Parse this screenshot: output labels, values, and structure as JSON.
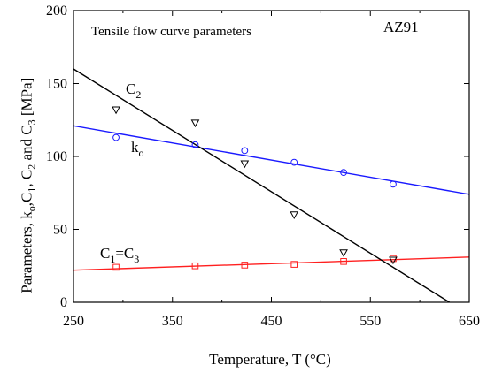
{
  "chart_data": {
    "type": "scatter",
    "title": "Tensile flow curve parameters",
    "material": "AZ91",
    "xlabel": "Temperature, T (°C)",
    "ylabel": "Parameters, k",
    "ylabel_parts": [
      "Parameters, k",
      "o",
      ",C",
      "1",
      ", C",
      "2",
      " and C",
      "3",
      " [MPa]"
    ],
    "xlim": [
      250,
      650
    ],
    "ylim": [
      0,
      200
    ],
    "xticks": [
      "250",
      "350",
      "450",
      "550",
      "650"
    ],
    "yticks": [
      "0",
      "50",
      "100",
      "150",
      "200"
    ],
    "colors": {
      "ko": "#1a1aff",
      "c13": "#ff2020",
      "c2": "#000000"
    },
    "series": [
      {
        "name": "k",
        "label_main": "k",
        "label_sub": "o",
        "marker": "circle",
        "color": "#1a1aff",
        "x": [
          293,
          373,
          423,
          473,
          523,
          573
        ],
        "y": [
          113,
          108,
          104,
          96,
          89,
          81
        ],
        "fit": {
          "x": [
            250,
            650
          ],
          "y": [
            121,
            74
          ]
        }
      },
      {
        "name": "C",
        "label_parts": [
          "C",
          "1",
          "=C",
          "3"
        ],
        "marker": "square",
        "color": "#ff2020",
        "x": [
          293,
          373,
          423,
          473,
          523,
          573
        ],
        "y": [
          24,
          25,
          25.5,
          26,
          28,
          30
        ],
        "fit": {
          "x": [
            250,
            650
          ],
          "y": [
            22,
            31
          ]
        }
      },
      {
        "name": "C",
        "label_main": "C",
        "label_sub": "2",
        "marker": "triangle-down",
        "color": "#000000",
        "x": [
          293,
          373,
          423,
          473,
          523,
          573
        ],
        "y": [
          132,
          123,
          95,
          60,
          34,
          29
        ],
        "fit": {
          "x": [
            250,
            630
          ],
          "y": [
            160,
            0
          ]
        }
      }
    ]
  }
}
